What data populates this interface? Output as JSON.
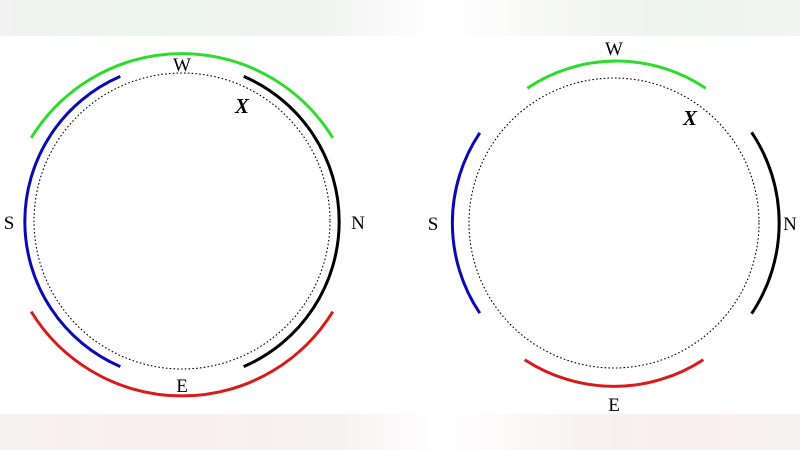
{
  "colors": {
    "north": "#000000",
    "east": "#d91a1a",
    "south": "#0a0ab4",
    "west": "#2ddc2d",
    "dotted_circle": "#000000"
  },
  "diagrams": [
    {
      "labels": {
        "north": "N",
        "east": "E",
        "south": "S",
        "west": "W",
        "point": "X"
      }
    },
    {
      "labels": {
        "north": "N",
        "east": "E",
        "south": "S",
        "west": "W",
        "point": "X"
      }
    }
  ]
}
